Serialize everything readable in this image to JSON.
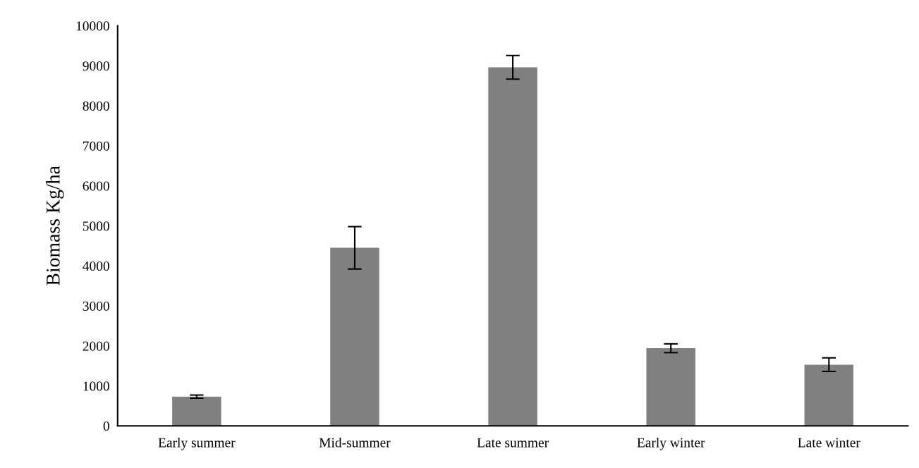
{
  "chart_data": {
    "type": "bar",
    "ylabel": "Biomass Kg/ha",
    "categories": [
      "Early summer",
      "Mid-summer",
      "Late summer",
      "Early winter",
      "Late winter"
    ],
    "values": [
      730,
      4450,
      8960,
      1940,
      1530
    ],
    "errors": [
      40,
      530,
      295,
      110,
      170
    ],
    "color": "#808080",
    "ylim": [
      0,
      10000
    ],
    "yticks": [
      0,
      1000,
      2000,
      3000,
      4000,
      5000,
      6000,
      7000,
      8000,
      9000,
      10000
    ],
    "grid": false
  }
}
